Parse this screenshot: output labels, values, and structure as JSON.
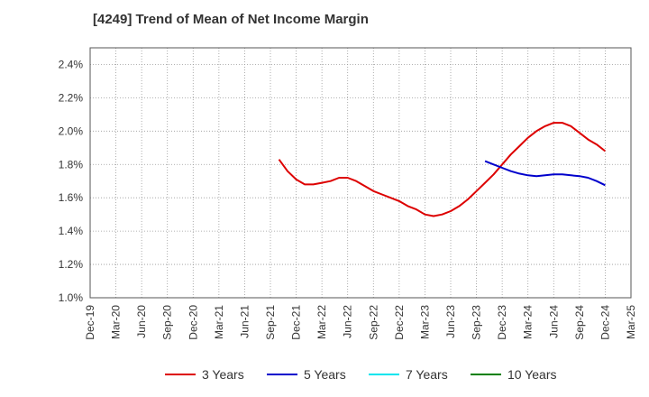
{
  "chart_data": {
    "type": "line",
    "title": "[4249]  Trend of Mean of Net Income Margin",
    "xlabel": "",
    "ylabel": "",
    "x_ticks": [
      "Dec-19",
      "Mar-20",
      "Jun-20",
      "Sep-20",
      "Dec-20",
      "Mar-21",
      "Jun-21",
      "Sep-21",
      "Dec-21",
      "Mar-22",
      "Jun-22",
      "Sep-22",
      "Dec-22",
      "Mar-23",
      "Jun-23",
      "Sep-23",
      "Dec-23",
      "Mar-24",
      "Jun-24",
      "Sep-24",
      "Dec-24",
      "Mar-25"
    ],
    "y_ticks": [
      "1.0%",
      "1.2%",
      "1.4%",
      "1.6%",
      "1.8%",
      "2.0%",
      "2.2%",
      "2.4%"
    ],
    "ylim": [
      1.0,
      2.5
    ],
    "y_unit": "%",
    "grid": true,
    "legend_position": "bottom",
    "series": [
      {
        "name": "3 Years",
        "color": "#dd0000",
        "x": [
          "Oct-21",
          "Nov-21",
          "Dec-21",
          "Jan-22",
          "Feb-22",
          "Mar-22",
          "Apr-22",
          "May-22",
          "Jun-22",
          "Jul-22",
          "Aug-22",
          "Sep-22",
          "Oct-22",
          "Nov-22",
          "Dec-22",
          "Jan-23",
          "Feb-23",
          "Mar-23",
          "Apr-23",
          "May-23",
          "Jun-23",
          "Jul-23",
          "Aug-23",
          "Sep-23",
          "Oct-23",
          "Nov-23",
          "Dec-23",
          "Jan-24",
          "Feb-24",
          "Mar-24",
          "Apr-24",
          "May-24",
          "Jun-24",
          "Jul-24",
          "Aug-24",
          "Sep-24",
          "Oct-24",
          "Nov-24",
          "Dec-24"
        ],
        "values": [
          1.83,
          1.76,
          1.71,
          1.68,
          1.68,
          1.69,
          1.7,
          1.72,
          1.72,
          1.7,
          1.67,
          1.64,
          1.62,
          1.6,
          1.58,
          1.55,
          1.53,
          1.5,
          1.49,
          1.5,
          1.52,
          1.55,
          1.59,
          1.64,
          1.69,
          1.74,
          1.8,
          1.86,
          1.91,
          1.96,
          2.0,
          2.03,
          2.05,
          2.05,
          2.03,
          1.99,
          1.95,
          1.92,
          1.88
        ]
      },
      {
        "name": "5 Years",
        "color": "#0000cc",
        "x": [
          "Oct-23",
          "Nov-23",
          "Dec-23",
          "Jan-24",
          "Feb-24",
          "Mar-24",
          "Apr-24",
          "May-24",
          "Jun-24",
          "Jul-24",
          "Aug-24",
          "Sep-24",
          "Oct-24",
          "Nov-24",
          "Dec-24"
        ],
        "values": [
          1.82,
          1.8,
          1.78,
          1.76,
          1.745,
          1.735,
          1.73,
          1.735,
          1.74,
          1.74,
          1.735,
          1.73,
          1.72,
          1.7,
          1.675
        ]
      },
      {
        "name": "7 Years",
        "color": "#00e5ee",
        "x": [],
        "values": []
      },
      {
        "name": "10 Years",
        "color": "#008000",
        "x": [],
        "values": []
      }
    ]
  }
}
